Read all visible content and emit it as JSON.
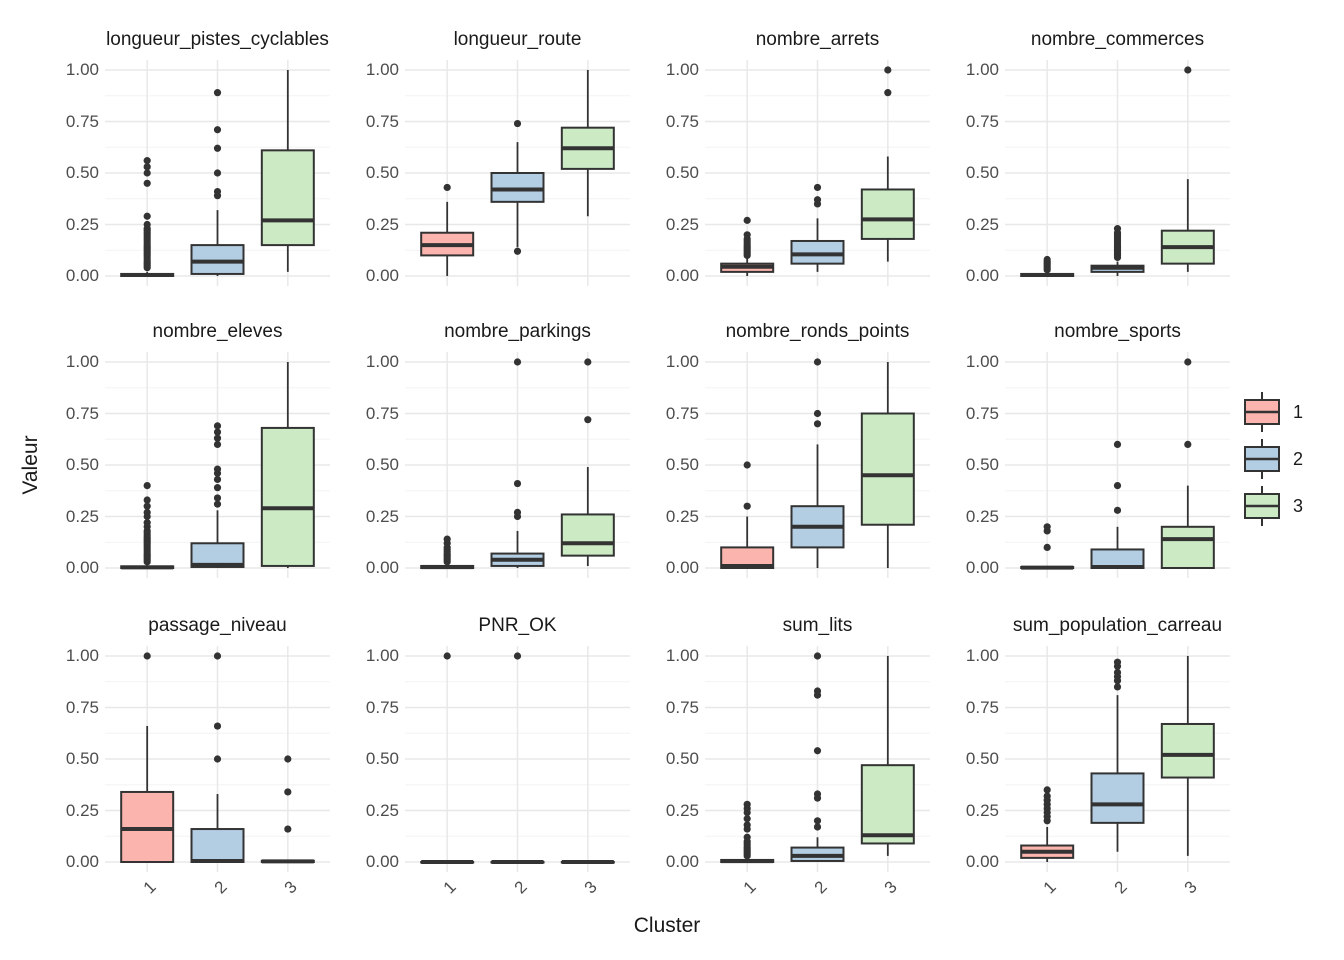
{
  "chart_data": {
    "type": "boxplot",
    "facet_layout": {
      "rows": 3,
      "cols": 4
    },
    "xlabel": "Cluster",
    "ylabel": "Valeur",
    "x_categories": [
      "1",
      "2",
      "3"
    ],
    "ylim": [
      0,
      1
    ],
    "ytick_values": [
      0,
      0.25,
      0.5,
      0.75,
      1
    ],
    "ytick_labels": [
      "0.00",
      "0.25",
      "0.50",
      "0.75",
      "1.00"
    ],
    "grid": true,
    "legend": {
      "position": "right",
      "entries": [
        {
          "label": "1",
          "fill": "#FBB4AE"
        },
        {
          "label": "2",
          "fill": "#B3CDE3"
        },
        {
          "label": "3",
          "fill": "#CCEBC5"
        }
      ]
    },
    "style": {
      "stroke": "#333333",
      "outlier_color": "#333333",
      "grid_major": "#E8E8E8",
      "grid_minor": "#F4F4F4",
      "axis_text": "#4D4D4D",
      "title_text": "#1A1A1A",
      "panel_background": "#FFFFFF"
    },
    "facets": [
      {
        "title": "longueur_pistes_cyclables",
        "boxes": [
          {
            "cluster": "1",
            "low": 0,
            "q1": 0,
            "median": 0.005,
            "q3": 0.01,
            "high": 0.02,
            "outliers": [
              0.04,
              0.05,
              0.06,
              0.07,
              0.08,
              0.09,
              0.1,
              0.11,
              0.12,
              0.13,
              0.14,
              0.15,
              0.16,
              0.17,
              0.18,
              0.19,
              0.2,
              0.21,
              0.22,
              0.23,
              0.25,
              0.29,
              0.45,
              0.5,
              0.53,
              0.56
            ]
          },
          {
            "cluster": "2",
            "low": 0,
            "q1": 0.01,
            "median": 0.07,
            "q3": 0.15,
            "high": 0.32,
            "outliers": [
              0.39,
              0.41,
              0.5,
              0.62,
              0.71,
              0.89
            ]
          },
          {
            "cluster": "3",
            "low": 0.02,
            "q1": 0.15,
            "median": 0.27,
            "q3": 0.61,
            "high": 1.0,
            "outliers": []
          }
        ]
      },
      {
        "title": "longueur_route",
        "boxes": [
          {
            "cluster": "1",
            "low": 0,
            "q1": 0.1,
            "median": 0.15,
            "q3": 0.21,
            "high": 0.36,
            "outliers": [
              0.43
            ]
          },
          {
            "cluster": "2",
            "low": 0.14,
            "q1": 0.36,
            "median": 0.42,
            "q3": 0.5,
            "high": 0.65,
            "outliers": [
              0.12,
              0.74
            ]
          },
          {
            "cluster": "3",
            "low": 0.29,
            "q1": 0.52,
            "median": 0.62,
            "q3": 0.72,
            "high": 1.0,
            "outliers": []
          }
        ]
      },
      {
        "title": "nombre_arrets",
        "boxes": [
          {
            "cluster": "1",
            "low": 0,
            "q1": 0.02,
            "median": 0.045,
            "q3": 0.06,
            "high": 0.085,
            "outliers": [
              0.1,
              0.11,
              0.12,
              0.13,
              0.14,
              0.15,
              0.16,
              0.17,
              0.18,
              0.2,
              0.27
            ]
          },
          {
            "cluster": "2",
            "low": 0.02,
            "q1": 0.06,
            "median": 0.105,
            "q3": 0.17,
            "high": 0.28,
            "outliers": [
              0.35,
              0.37,
              0.43
            ]
          },
          {
            "cluster": "3",
            "low": 0.07,
            "q1": 0.18,
            "median": 0.275,
            "q3": 0.42,
            "high": 0.58,
            "outliers": [
              0.89,
              1.0
            ]
          }
        ]
      },
      {
        "title": "nombre_commerces",
        "boxes": [
          {
            "cluster": "1",
            "low": 0,
            "q1": 0,
            "median": 0.005,
            "q3": 0.01,
            "high": 0.02,
            "outliers": [
              0.03,
              0.04,
              0.05,
              0.06,
              0.07,
              0.08
            ]
          },
          {
            "cluster": "2",
            "low": 0,
            "q1": 0.02,
            "median": 0.04,
            "q3": 0.05,
            "high": 0.07,
            "outliers": [
              0.09,
              0.1,
              0.11,
              0.12,
              0.13,
              0.14,
              0.15,
              0.16,
              0.17,
              0.18,
              0.19,
              0.2,
              0.21,
              0.23
            ]
          },
          {
            "cluster": "3",
            "low": 0.02,
            "q1": 0.06,
            "median": 0.14,
            "q3": 0.22,
            "high": 0.47,
            "outliers": [
              1.0
            ]
          }
        ]
      },
      {
        "title": "nombre_eleves",
        "boxes": [
          {
            "cluster": "1",
            "low": 0,
            "q1": 0,
            "median": 0.003,
            "q3": 0.008,
            "high": 0.015,
            "outliers": [
              0.03,
              0.04,
              0.05,
              0.06,
              0.07,
              0.08,
              0.09,
              0.1,
              0.11,
              0.12,
              0.13,
              0.14,
              0.15,
              0.16,
              0.17,
              0.18,
              0.2,
              0.22,
              0.25,
              0.27,
              0.3,
              0.33,
              0.4
            ]
          },
          {
            "cluster": "2",
            "low": 0,
            "q1": 0.005,
            "median": 0.015,
            "q3": 0.12,
            "high": 0.28,
            "outliers": [
              0.31,
              0.34,
              0.39,
              0.43,
              0.46,
              0.48,
              0.6,
              0.63,
              0.66,
              0.69
            ]
          },
          {
            "cluster": "3",
            "low": 0,
            "q1": 0.01,
            "median": 0.29,
            "q3": 0.68,
            "high": 1.0,
            "outliers": []
          }
        ]
      },
      {
        "title": "nombre_parkings",
        "boxes": [
          {
            "cluster": "1",
            "low": 0,
            "q1": 0,
            "median": 0.004,
            "q3": 0.01,
            "high": 0.02,
            "outliers": [
              0.03,
              0.04,
              0.05,
              0.06,
              0.07,
              0.08,
              0.09,
              0.1,
              0.12,
              0.14
            ]
          },
          {
            "cluster": "2",
            "low": 0,
            "q1": 0.01,
            "median": 0.04,
            "q3": 0.07,
            "high": 0.18,
            "outliers": [
              0.25,
              0.27,
              0.41,
              1.0
            ]
          },
          {
            "cluster": "3",
            "low": 0.01,
            "q1": 0.06,
            "median": 0.12,
            "q3": 0.26,
            "high": 0.49,
            "outliers": [
              0.72,
              1.0
            ]
          }
        ]
      },
      {
        "title": "nombre_ronds_points",
        "boxes": [
          {
            "cluster": "1",
            "low": 0,
            "q1": 0,
            "median": 0.01,
            "q3": 0.1,
            "high": 0.25,
            "outliers": [
              0.3,
              0.5
            ]
          },
          {
            "cluster": "2",
            "low": 0,
            "q1": 0.1,
            "median": 0.2,
            "q3": 0.3,
            "high": 0.6,
            "outliers": [
              0.7,
              0.75,
              1.0
            ]
          },
          {
            "cluster": "3",
            "low": 0,
            "q1": 0.21,
            "median": 0.45,
            "q3": 0.75,
            "high": 1.0,
            "outliers": []
          }
        ]
      },
      {
        "title": "nombre_sports",
        "boxes": [
          {
            "cluster": "1",
            "low": 0,
            "q1": 0,
            "median": 0.002,
            "q3": 0.005,
            "high": 0.01,
            "outliers": [
              0.1,
              0.18,
              0.2
            ]
          },
          {
            "cluster": "2",
            "low": 0,
            "q1": 0,
            "median": 0.005,
            "q3": 0.09,
            "high": 0.2,
            "outliers": [
              0.28,
              0.4,
              0.6
            ]
          },
          {
            "cluster": "3",
            "low": 0,
            "q1": 0,
            "median": 0.14,
            "q3": 0.2,
            "high": 0.4,
            "outliers": [
              0.6,
              1.0
            ]
          }
        ]
      },
      {
        "title": "passage_niveau",
        "boxes": [
          {
            "cluster": "1",
            "low": 0,
            "q1": 0,
            "median": 0.16,
            "q3": 0.34,
            "high": 0.66,
            "outliers": [
              1.0
            ]
          },
          {
            "cluster": "2",
            "low": 0,
            "q1": 0,
            "median": 0.005,
            "q3": 0.16,
            "high": 0.33,
            "outliers": [
              0.5,
              0.66,
              1.0
            ]
          },
          {
            "cluster": "3",
            "low": 0,
            "q1": 0,
            "median": 0.003,
            "q3": 0.006,
            "high": 0.01,
            "outliers": [
              0.16,
              0.34,
              0.5
            ]
          }
        ]
      },
      {
        "title": "PNR_OK",
        "boxes": [
          {
            "cluster": "1",
            "low": 0,
            "q1": 0,
            "median": 0,
            "q3": 0,
            "high": 0,
            "outliers": [
              1.0
            ]
          },
          {
            "cluster": "2",
            "low": 0,
            "q1": 0,
            "median": 0,
            "q3": 0,
            "high": 0,
            "outliers": [
              1.0
            ]
          },
          {
            "cluster": "3",
            "low": 0,
            "q1": 0,
            "median": 0,
            "q3": 0,
            "high": 0,
            "outliers": []
          }
        ]
      },
      {
        "title": "sum_lits",
        "boxes": [
          {
            "cluster": "1",
            "low": 0,
            "q1": 0,
            "median": 0.004,
            "q3": 0.01,
            "high": 0.02,
            "outliers": [
              0.03,
              0.04,
              0.05,
              0.06,
              0.07,
              0.08,
              0.09,
              0.1,
              0.12,
              0.16,
              0.18,
              0.21,
              0.24,
              0.26,
              0.28
            ]
          },
          {
            "cluster": "2",
            "low": 0,
            "q1": 0.005,
            "median": 0.03,
            "q3": 0.07,
            "high": 0.12,
            "outliers": [
              0.17,
              0.2,
              0.31,
              0.33,
              0.54,
              0.81,
              0.83,
              1.0
            ]
          },
          {
            "cluster": "3",
            "low": 0.03,
            "q1": 0.09,
            "median": 0.13,
            "q3": 0.47,
            "high": 1.0,
            "outliers": []
          }
        ]
      },
      {
        "title": "sum_population_carreau",
        "boxes": [
          {
            "cluster": "1",
            "low": 0,
            "q1": 0.02,
            "median": 0.05,
            "q3": 0.08,
            "high": 0.17,
            "outliers": [
              0.2,
              0.22,
              0.24,
              0.26,
              0.28,
              0.3,
              0.32,
              0.35
            ]
          },
          {
            "cluster": "2",
            "low": 0.05,
            "q1": 0.19,
            "median": 0.28,
            "q3": 0.43,
            "high": 0.81,
            "outliers": [
              0.85,
              0.88,
              0.9,
              0.92,
              0.95,
              0.97
            ]
          },
          {
            "cluster": "3",
            "low": 0.03,
            "q1": 0.41,
            "median": 0.52,
            "q3": 0.67,
            "high": 1.0,
            "outliers": []
          }
        ]
      }
    ]
  }
}
